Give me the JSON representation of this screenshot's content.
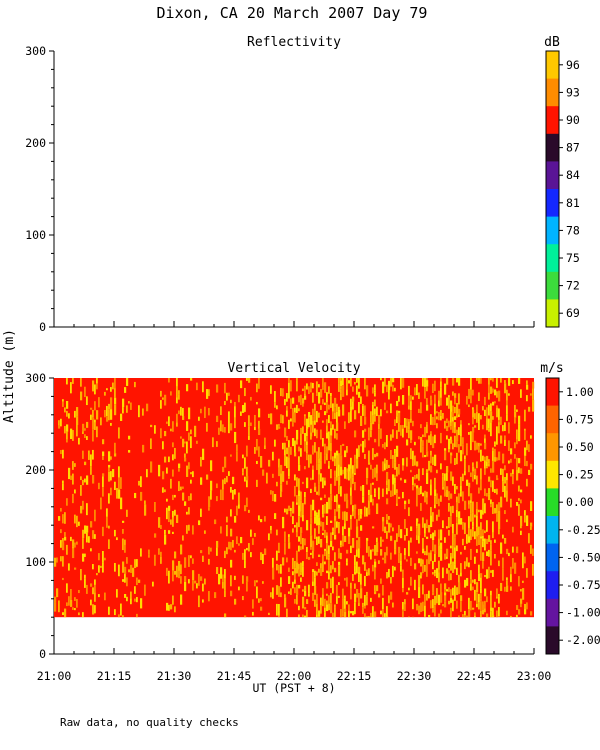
{
  "title": "Dixon, CA 20 March 2007  Day  79",
  "ylabel": "Altitude (m)",
  "xlabel": "UT  (PST + 8)",
  "footnote": "Raw data, no quality checks",
  "x_ticks": [
    "21:00",
    "21:15",
    "21:30",
    "21:45",
    "22:00",
    "22:15",
    "22:30",
    "22:45",
    "23:00"
  ],
  "chart_data": [
    {
      "type": "heatmap",
      "title": "Reflectivity",
      "colorbar_unit": "dB",
      "x_range": [
        "21:00",
        "23:00"
      ],
      "y_range": [
        0,
        300
      ],
      "y_ticks": [
        0,
        100,
        200,
        300
      ],
      "colorbar_ticks": [
        "96",
        "93",
        "90",
        "87",
        "84",
        "81",
        "78",
        "75",
        "72",
        "69"
      ],
      "colorbar_colors": [
        "#ffc800",
        "#ff8c00",
        "#ff1400",
        "#2a0a2a",
        "#5a1496",
        "#1428ff",
        "#00b4ff",
        "#00f09a",
        "#3cdc3c",
        "#c8f000"
      ],
      "cells": []
    },
    {
      "type": "heatmap",
      "title": "Vertical Velocity",
      "colorbar_unit": "m/s",
      "x_range": [
        "21:00",
        "23:00"
      ],
      "y_range": [
        0,
        300
      ],
      "y_ticks": [
        0,
        100,
        200,
        300
      ],
      "data_altitude_range": [
        40,
        300
      ],
      "colorbar_ticks": [
        "1.00",
        "0.75",
        "0.50",
        "0.25",
        "0.00",
        "-0.25",
        "-0.50",
        "-0.75",
        "-1.00",
        "-2.00"
      ],
      "colorbar_colors": [
        "#ff1400",
        "#ff6400",
        "#ff9600",
        "#ffe600",
        "#28dc28",
        "#00b4f0",
        "#0064f0",
        "#1e1ef0",
        "#6414a0",
        "#2a0a2a"
      ],
      "dominant_color": "#ff1400",
      "speckle_colors": [
        "#ff8c00",
        "#ffb400",
        "#ffdc00"
      ],
      "speckle_density_by_time": [
        {
          "time": "21:00",
          "density": 0.16
        },
        {
          "time": "21:15",
          "density": 0.18
        },
        {
          "time": "21:25",
          "density": 0.05
        },
        {
          "time": "21:30",
          "density": 0.22
        },
        {
          "time": "21:40",
          "density": 0.08
        },
        {
          "time": "21:45",
          "density": 0.25
        },
        {
          "time": "21:53",
          "density": 0.1
        },
        {
          "time": "22:00",
          "density": 0.38
        },
        {
          "time": "22:10",
          "density": 0.42
        },
        {
          "time": "22:20",
          "density": 0.3
        },
        {
          "time": "22:30",
          "density": 0.26
        },
        {
          "time": "22:37",
          "density": 0.36
        },
        {
          "time": "22:45",
          "density": 0.44
        },
        {
          "time": "22:52",
          "density": 0.3
        },
        {
          "time": "23:00",
          "density": 0.2
        }
      ]
    }
  ]
}
